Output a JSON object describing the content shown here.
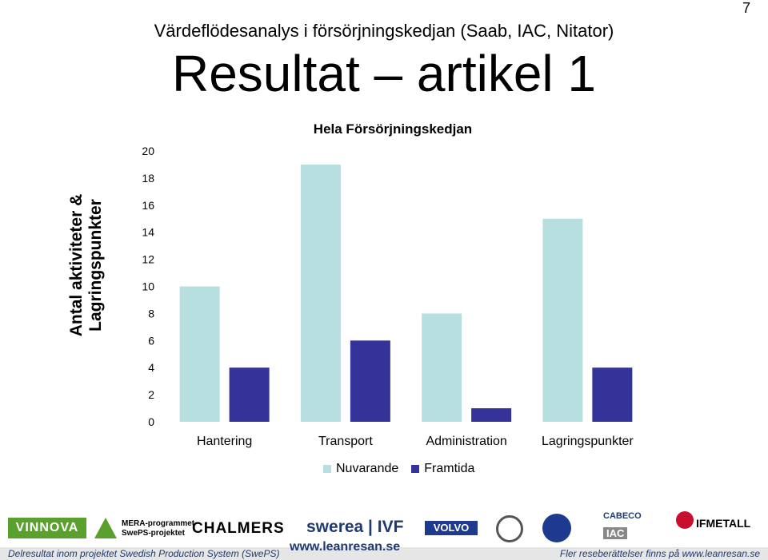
{
  "page_number": "7",
  "subtitle": "Värdeflödesanalys i försörjningskedjan (Saab, IAC, Nitator)",
  "title": "Resultat – artikel 1",
  "y_axis_label_lines": [
    "Antal aktiviteter &",
    "Lagringspunkter"
  ],
  "colors": {
    "current": "#b8dfe0",
    "future": "#333399"
  },
  "chart_data": {
    "type": "bar",
    "title": "Hela Försörjningskedjan",
    "categories": [
      "Hantering",
      "Transport",
      "Administration",
      "Lagringspunkter"
    ],
    "series": [
      {
        "name": "Nuvarande",
        "values": [
          10,
          19,
          8,
          15
        ]
      },
      {
        "name": "Framtida",
        "values": [
          4,
          6,
          1,
          4
        ]
      }
    ],
    "xlabel": "",
    "ylabel": "Antal aktiviteter & Lagringspunkter",
    "ylim": [
      0,
      20
    ],
    "yticks": [
      0,
      2,
      4,
      6,
      8,
      10,
      12,
      14,
      16,
      18,
      20
    ],
    "grid": false,
    "legend": "bottom"
  },
  "footer": {
    "left_text": "Delresultat inom projektet Swedish Production System (SwePS)",
    "center_url": "www.leanresan.se",
    "right_text": "Fler reseberättelser finns på www.leanresan.se",
    "logos": {
      "vinnova": "VINNOVA",
      "mera_line1": "MERA-programmet",
      "mera_line2": "SwePS-projektet",
      "chalmers": "CHALMERS",
      "swerea": "swerea | IVF",
      "volvo": "VOLVO",
      "cabeco": "CABECO",
      "iac": "IAC",
      "ifmetall": "IFMETALL"
    }
  }
}
